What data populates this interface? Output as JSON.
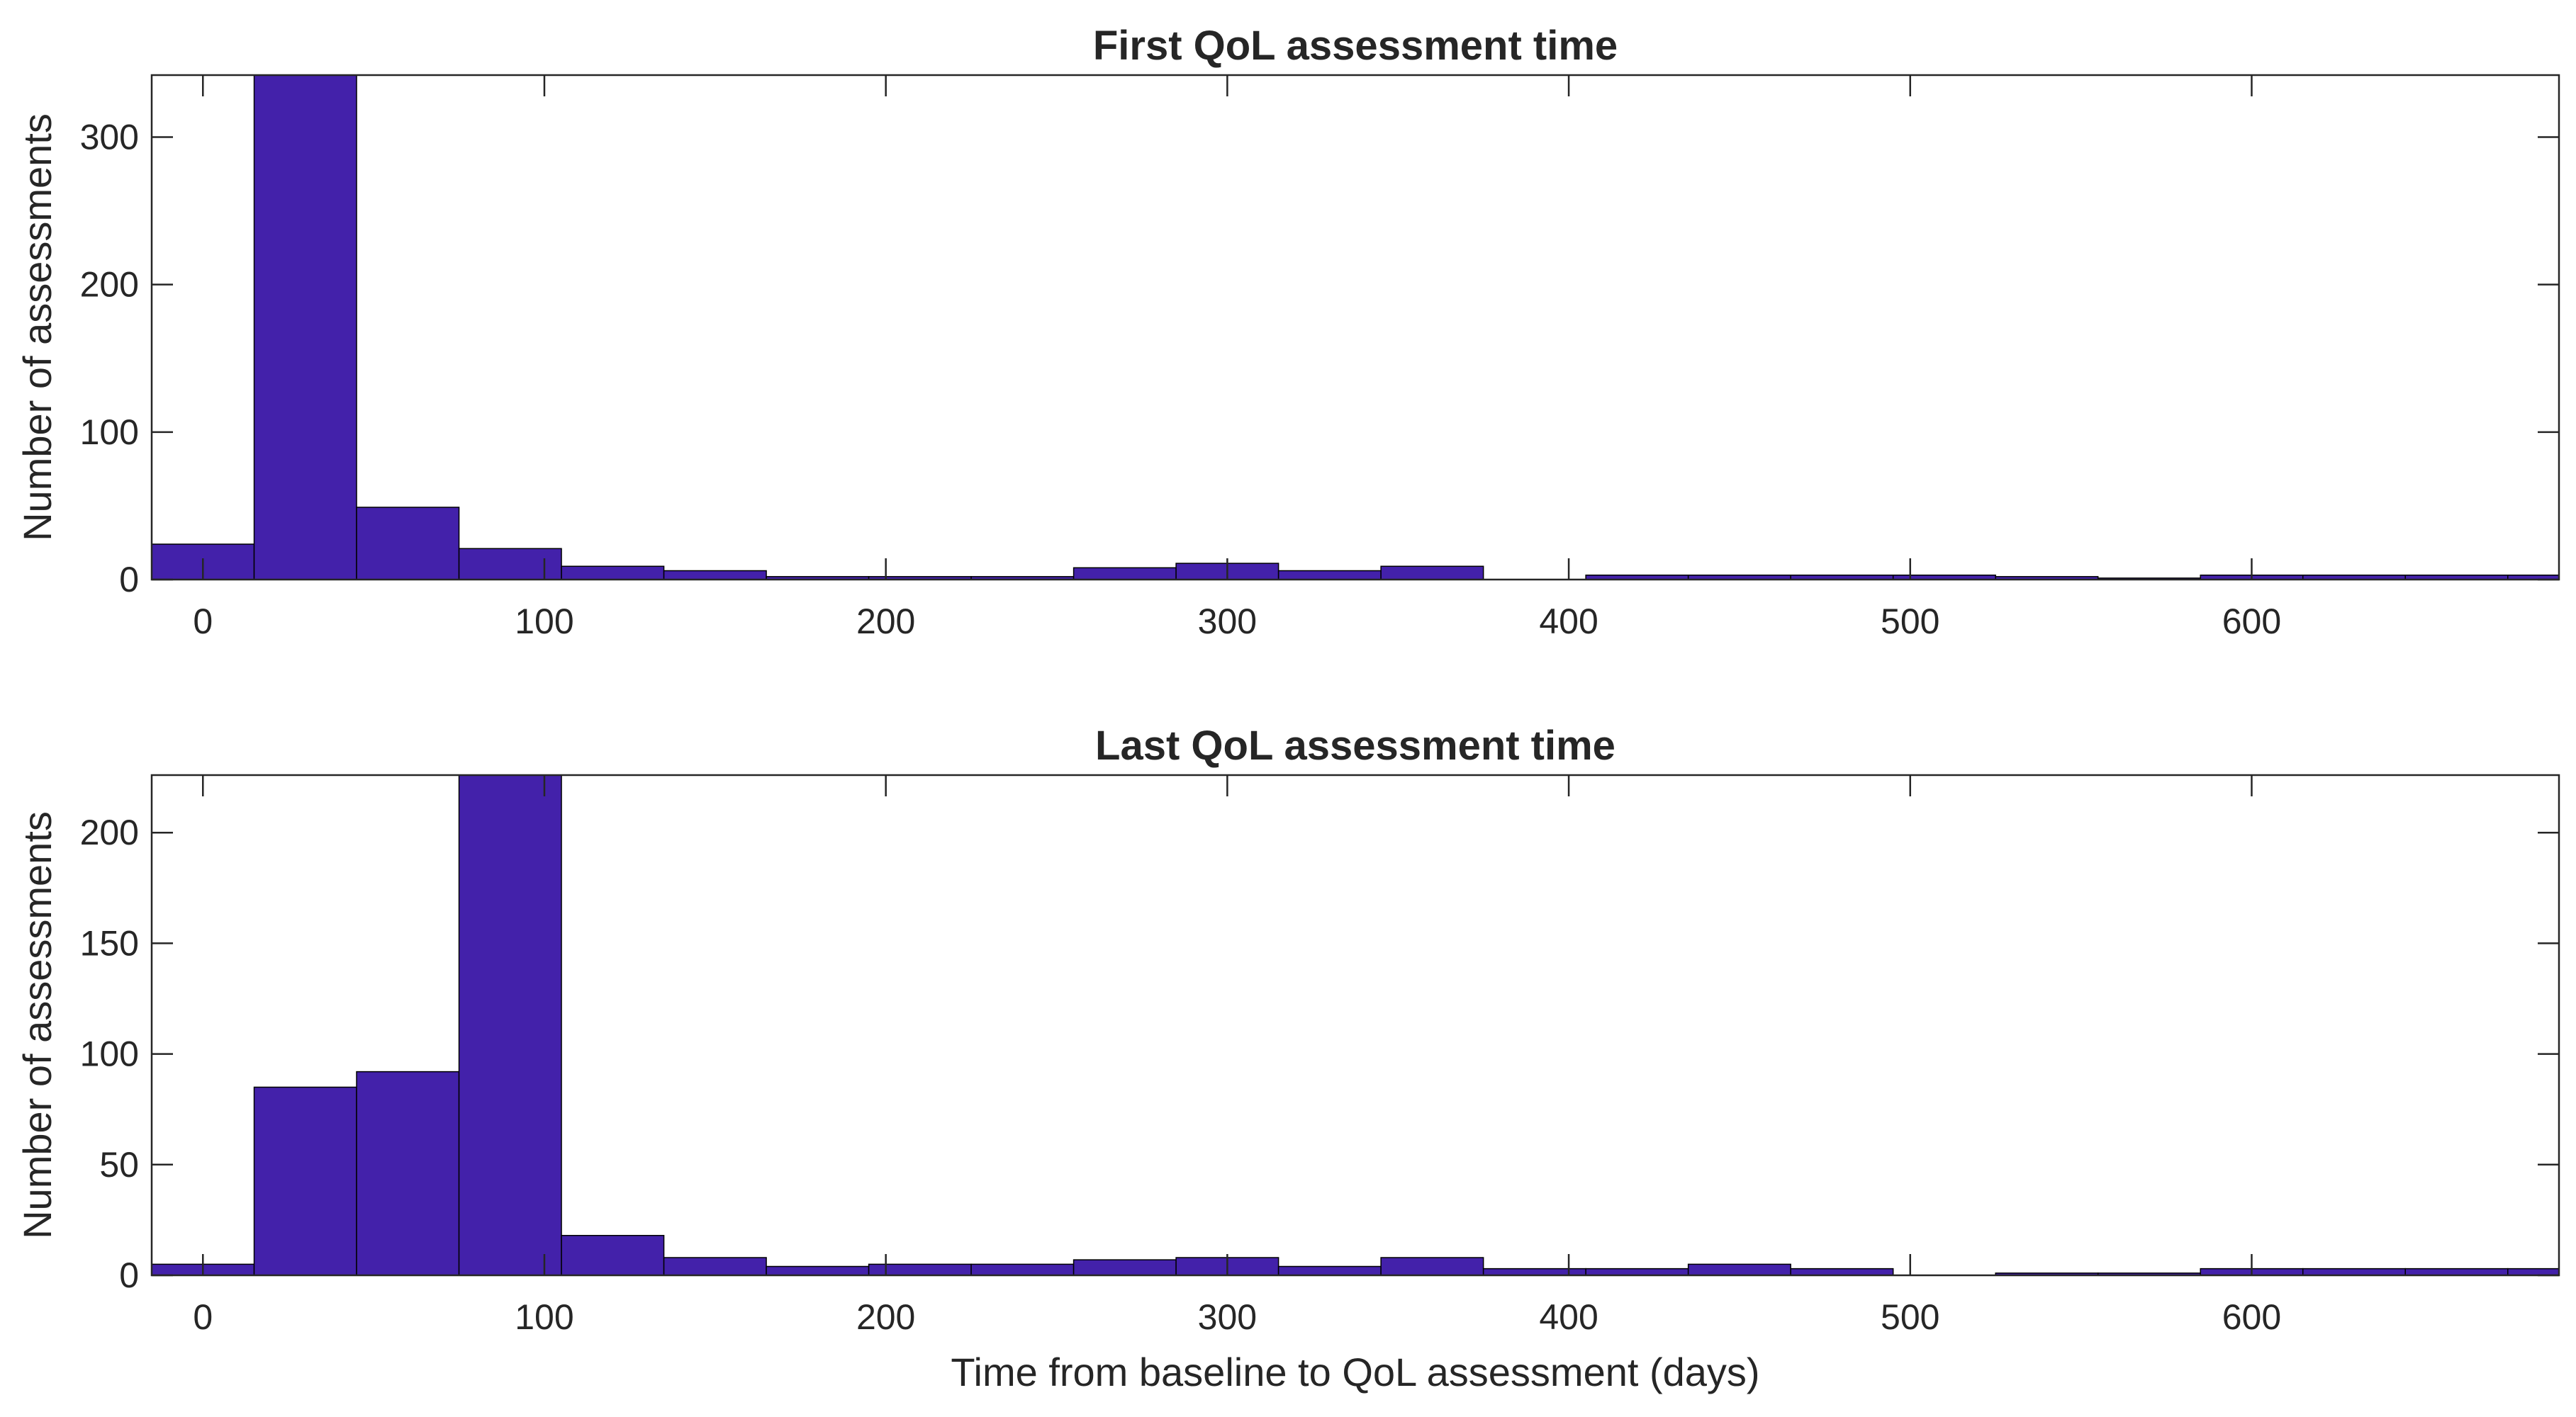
{
  "colors": {
    "bar": "#4321AA"
  },
  "chart_data": [
    {
      "type": "bar",
      "title": "First QoL assessment time",
      "xlabel": "",
      "ylabel": "Number of assessments",
      "xlim": [
        -15,
        690
      ],
      "ylim": [
        0,
        342
      ],
      "xticks": [
        0,
        100,
        200,
        300,
        400,
        500,
        600
      ],
      "yticks": [
        0,
        100,
        200,
        300
      ],
      "bin_edges": [
        -15,
        15,
        45,
        75,
        105,
        135,
        165,
        195,
        225,
        255,
        285,
        315,
        345,
        375,
        405,
        435,
        465,
        495,
        525,
        555,
        585,
        615,
        645,
        675,
        705
      ],
      "values": [
        24,
        342,
        49,
        21,
        9,
        6,
        2,
        2,
        2,
        8,
        11,
        6,
        9,
        0,
        3,
        3,
        3,
        3,
        2,
        1,
        3,
        3,
        3,
        3
      ]
    },
    {
      "type": "bar",
      "title": "Last QoL assessment time",
      "xlabel": "Time from baseline to QoL assessment (days)",
      "ylabel": "Number of assessments",
      "xlim": [
        -15,
        690
      ],
      "ylim": [
        0,
        226
      ],
      "xticks": [
        0,
        100,
        200,
        300,
        400,
        500,
        600
      ],
      "yticks": [
        0,
        50,
        100,
        150,
        200
      ],
      "bin_edges": [
        -15,
        15,
        45,
        75,
        105,
        135,
        165,
        195,
        225,
        255,
        285,
        315,
        345,
        375,
        405,
        435,
        465,
        495,
        525,
        555,
        585,
        615,
        645,
        675,
        705
      ],
      "values": [
        5,
        85,
        92,
        226,
        18,
        8,
        4,
        5,
        5,
        7,
        8,
        4,
        8,
        3,
        3,
        5,
        3,
        0,
        1,
        1,
        3,
        3,
        3,
        3
      ]
    }
  ]
}
